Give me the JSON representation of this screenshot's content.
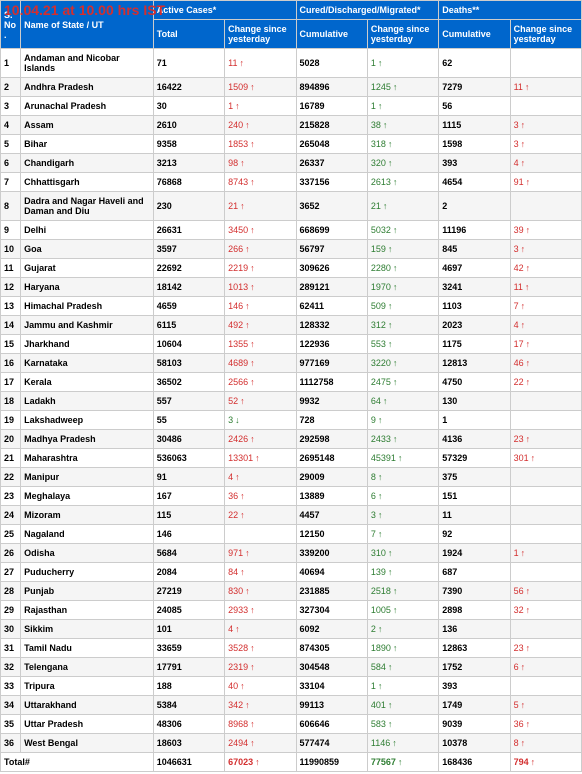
{
  "timestamp": "10.04.21 at 10.00 hrs IST",
  "headers": {
    "sno": "S. No.",
    "name": "Name of State / UT",
    "active": "Active Cases*",
    "cured": "Cured/Discharged/Migrated*",
    "deaths": "Deaths**",
    "total": "Total",
    "change": "Change since yesterday",
    "cumulative": "Cumulative"
  },
  "colors": {
    "header_bg": "#0066cc",
    "header_fg": "#ffffff",
    "up_red": "#d32f2f",
    "up_green": "#2e7d32",
    "border": "#cccccc",
    "alt_row": "#f5f5f5"
  },
  "rows": [
    {
      "sno": "1",
      "name": "Andaman and Nicobar Islands",
      "active_total": "71",
      "active_change": "11",
      "active_dir": "up-red",
      "cured_cum": "5028",
      "cured_change": "1",
      "cured_dir": "up-green",
      "death_cum": "62",
      "death_change": "",
      "death_dir": ""
    },
    {
      "sno": "2",
      "name": "Andhra Pradesh",
      "active_total": "16422",
      "active_change": "1509",
      "active_dir": "up-red",
      "cured_cum": "894896",
      "cured_change": "1245",
      "cured_dir": "up-green",
      "death_cum": "7279",
      "death_change": "11",
      "death_dir": "up-red"
    },
    {
      "sno": "3",
      "name": "Arunachal Pradesh",
      "active_total": "30",
      "active_change": "1",
      "active_dir": "up-red",
      "cured_cum": "16789",
      "cured_change": "1",
      "cured_dir": "up-green",
      "death_cum": "56",
      "death_change": "",
      "death_dir": ""
    },
    {
      "sno": "4",
      "name": "Assam",
      "active_total": "2610",
      "active_change": "240",
      "active_dir": "up-red",
      "cured_cum": "215828",
      "cured_change": "38",
      "cured_dir": "up-green",
      "death_cum": "1115",
      "death_change": "3",
      "death_dir": "up-red"
    },
    {
      "sno": "5",
      "name": "Bihar",
      "active_total": "9358",
      "active_change": "1853",
      "active_dir": "up-red",
      "cured_cum": "265048",
      "cured_change": "318",
      "cured_dir": "up-green",
      "death_cum": "1598",
      "death_change": "3",
      "death_dir": "up-red"
    },
    {
      "sno": "6",
      "name": "Chandigarh",
      "active_total": "3213",
      "active_change": "98",
      "active_dir": "up-red",
      "cured_cum": "26337",
      "cured_change": "320",
      "cured_dir": "up-green",
      "death_cum": "393",
      "death_change": "4",
      "death_dir": "up-red"
    },
    {
      "sno": "7",
      "name": "Chhattisgarh",
      "active_total": "76868",
      "active_change": "8743",
      "active_dir": "up-red",
      "cured_cum": "337156",
      "cured_change": "2613",
      "cured_dir": "up-green",
      "death_cum": "4654",
      "death_change": "91",
      "death_dir": "up-red"
    },
    {
      "sno": "8",
      "name": "Dadra and Nagar Haveli and Daman and Diu",
      "active_total": "230",
      "active_change": "21",
      "active_dir": "up-red",
      "cured_cum": "3652",
      "cured_change": "21",
      "cured_dir": "up-green",
      "death_cum": "2",
      "death_change": "",
      "death_dir": ""
    },
    {
      "sno": "9",
      "name": "Delhi",
      "active_total": "26631",
      "active_change": "3450",
      "active_dir": "up-red",
      "cured_cum": "668699",
      "cured_change": "5032",
      "cured_dir": "up-green",
      "death_cum": "11196",
      "death_change": "39",
      "death_dir": "up-red"
    },
    {
      "sno": "10",
      "name": "Goa",
      "active_total": "3597",
      "active_change": "266",
      "active_dir": "up-red",
      "cured_cum": "56797",
      "cured_change": "159",
      "cured_dir": "up-green",
      "death_cum": "845",
      "death_change": "3",
      "death_dir": "up-red"
    },
    {
      "sno": "11",
      "name": "Gujarat",
      "active_total": "22692",
      "active_change": "2219",
      "active_dir": "up-red",
      "cured_cum": "309626",
      "cured_change": "2280",
      "cured_dir": "up-green",
      "death_cum": "4697",
      "death_change": "42",
      "death_dir": "up-red"
    },
    {
      "sno": "12",
      "name": "Haryana",
      "active_total": "18142",
      "active_change": "1013",
      "active_dir": "up-red",
      "cured_cum": "289121",
      "cured_change": "1970",
      "cured_dir": "up-green",
      "death_cum": "3241",
      "death_change": "11",
      "death_dir": "up-red"
    },
    {
      "sno": "13",
      "name": "Himachal Pradesh",
      "active_total": "4659",
      "active_change": "146",
      "active_dir": "up-red",
      "cured_cum": "62411",
      "cured_change": "509",
      "cured_dir": "up-green",
      "death_cum": "1103",
      "death_change": "7",
      "death_dir": "up-red"
    },
    {
      "sno": "14",
      "name": "Jammu and Kashmir",
      "active_total": "6115",
      "active_change": "492",
      "active_dir": "up-red",
      "cured_cum": "128332",
      "cured_change": "312",
      "cured_dir": "up-green",
      "death_cum": "2023",
      "death_change": "4",
      "death_dir": "up-red"
    },
    {
      "sno": "15",
      "name": "Jharkhand",
      "active_total": "10604",
      "active_change": "1355",
      "active_dir": "up-red",
      "cured_cum": "122936",
      "cured_change": "553",
      "cured_dir": "up-green",
      "death_cum": "1175",
      "death_change": "17",
      "death_dir": "up-red"
    },
    {
      "sno": "16",
      "name": "Karnataka",
      "active_total": "58103",
      "active_change": "4689",
      "active_dir": "up-red",
      "cured_cum": "977169",
      "cured_change": "3220",
      "cured_dir": "up-green",
      "death_cum": "12813",
      "death_change": "46",
      "death_dir": "up-red"
    },
    {
      "sno": "17",
      "name": "Kerala",
      "active_total": "36502",
      "active_change": "2566",
      "active_dir": "up-red",
      "cured_cum": "1112758",
      "cured_change": "2475",
      "cured_dir": "up-green",
      "death_cum": "4750",
      "death_change": "22",
      "death_dir": "up-red"
    },
    {
      "sno": "18",
      "name": "Ladakh",
      "active_total": "557",
      "active_change": "52",
      "active_dir": "up-red",
      "cured_cum": "9932",
      "cured_change": "64",
      "cured_dir": "up-green",
      "death_cum": "130",
      "death_change": "",
      "death_dir": ""
    },
    {
      "sno": "19",
      "name": "Lakshadweep",
      "active_total": "55",
      "active_change": "3",
      "active_dir": "down-green",
      "cured_cum": "728",
      "cured_change": "9",
      "cured_dir": "up-green",
      "death_cum": "1",
      "death_change": "",
      "death_dir": ""
    },
    {
      "sno": "20",
      "name": "Madhya Pradesh",
      "active_total": "30486",
      "active_change": "2426",
      "active_dir": "up-red",
      "cured_cum": "292598",
      "cured_change": "2433",
      "cured_dir": "up-green",
      "death_cum": "4136",
      "death_change": "23",
      "death_dir": "up-red"
    },
    {
      "sno": "21",
      "name": "Maharashtra",
      "active_total": "536063",
      "active_change": "13301",
      "active_dir": "up-red",
      "cured_cum": "2695148",
      "cured_change": "45391",
      "cured_dir": "up-green",
      "death_cum": "57329",
      "death_change": "301",
      "death_dir": "up-red"
    },
    {
      "sno": "22",
      "name": "Manipur",
      "active_total": "91",
      "active_change": "4",
      "active_dir": "up-red",
      "cured_cum": "29009",
      "cured_change": "8",
      "cured_dir": "up-green",
      "death_cum": "375",
      "death_change": "",
      "death_dir": ""
    },
    {
      "sno": "23",
      "name": "Meghalaya",
      "active_total": "167",
      "active_change": "36",
      "active_dir": "up-red",
      "cured_cum": "13889",
      "cured_change": "6",
      "cured_dir": "up-green",
      "death_cum": "151",
      "death_change": "",
      "death_dir": ""
    },
    {
      "sno": "24",
      "name": "Mizoram",
      "active_total": "115",
      "active_change": "22",
      "active_dir": "up-red",
      "cured_cum": "4457",
      "cured_change": "3",
      "cured_dir": "up-green",
      "death_cum": "11",
      "death_change": "",
      "death_dir": ""
    },
    {
      "sno": "25",
      "name": "Nagaland",
      "active_total": "146",
      "active_change": "",
      "active_dir": "",
      "cured_cum": "12150",
      "cured_change": "7",
      "cured_dir": "up-green",
      "death_cum": "92",
      "death_change": "",
      "death_dir": ""
    },
    {
      "sno": "26",
      "name": "Odisha",
      "active_total": "5684",
      "active_change": "971",
      "active_dir": "up-red",
      "cured_cum": "339200",
      "cured_change": "310",
      "cured_dir": "up-green",
      "death_cum": "1924",
      "death_change": "1",
      "death_dir": "up-red"
    },
    {
      "sno": "27",
      "name": "Puducherry",
      "active_total": "2084",
      "active_change": "84",
      "active_dir": "up-red",
      "cured_cum": "40694",
      "cured_change": "139",
      "cured_dir": "up-green",
      "death_cum": "687",
      "death_change": "",
      "death_dir": ""
    },
    {
      "sno": "28",
      "name": "Punjab",
      "active_total": "27219",
      "active_change": "830",
      "active_dir": "up-red",
      "cured_cum": "231885",
      "cured_change": "2518",
      "cured_dir": "up-green",
      "death_cum": "7390",
      "death_change": "56",
      "death_dir": "up-red"
    },
    {
      "sno": "29",
      "name": "Rajasthan",
      "active_total": "24085",
      "active_change": "2933",
      "active_dir": "up-red",
      "cured_cum": "327304",
      "cured_change": "1005",
      "cured_dir": "up-green",
      "death_cum": "2898",
      "death_change": "32",
      "death_dir": "up-red"
    },
    {
      "sno": "30",
      "name": "Sikkim",
      "active_total": "101",
      "active_change": "4",
      "active_dir": "up-red",
      "cured_cum": "6092",
      "cured_change": "2",
      "cured_dir": "up-green",
      "death_cum": "136",
      "death_change": "",
      "death_dir": ""
    },
    {
      "sno": "31",
      "name": "Tamil Nadu",
      "active_total": "33659",
      "active_change": "3528",
      "active_dir": "up-red",
      "cured_cum": "874305",
      "cured_change": "1890",
      "cured_dir": "up-green",
      "death_cum": "12863",
      "death_change": "23",
      "death_dir": "up-red"
    },
    {
      "sno": "32",
      "name": "Telengana",
      "active_total": "17791",
      "active_change": "2319",
      "active_dir": "up-red",
      "cured_cum": "304548",
      "cured_change": "584",
      "cured_dir": "up-green",
      "death_cum": "1752",
      "death_change": "6",
      "death_dir": "up-red"
    },
    {
      "sno": "33",
      "name": "Tripura",
      "active_total": "188",
      "active_change": "40",
      "active_dir": "up-red",
      "cured_cum": "33104",
      "cured_change": "1",
      "cured_dir": "up-green",
      "death_cum": "393",
      "death_change": "",
      "death_dir": ""
    },
    {
      "sno": "34",
      "name": "Uttarakhand",
      "active_total": "5384",
      "active_change": "342",
      "active_dir": "up-red",
      "cured_cum": "99113",
      "cured_change": "401",
      "cured_dir": "up-green",
      "death_cum": "1749",
      "death_change": "5",
      "death_dir": "up-red"
    },
    {
      "sno": "35",
      "name": "Uttar Pradesh",
      "active_total": "48306",
      "active_change": "8968",
      "active_dir": "up-red",
      "cured_cum": "606646",
      "cured_change": "583",
      "cured_dir": "up-green",
      "death_cum": "9039",
      "death_change": "36",
      "death_dir": "up-red"
    },
    {
      "sno": "36",
      "name": "West Bengal",
      "active_total": "18603",
      "active_change": "2494",
      "active_dir": "up-red",
      "cured_cum": "577474",
      "cured_change": "1146",
      "cured_dir": "up-green",
      "death_cum": "10378",
      "death_change": "8",
      "death_dir": "up-red"
    }
  ],
  "total": {
    "label": "Total#",
    "active_total": "1046631",
    "active_change": "67023",
    "active_dir": "up-red",
    "cured_cum": "11990859",
    "cured_change": "77567",
    "cured_dir": "up-green",
    "death_cum": "168436",
    "death_change": "794",
    "death_dir": "up-red"
  }
}
